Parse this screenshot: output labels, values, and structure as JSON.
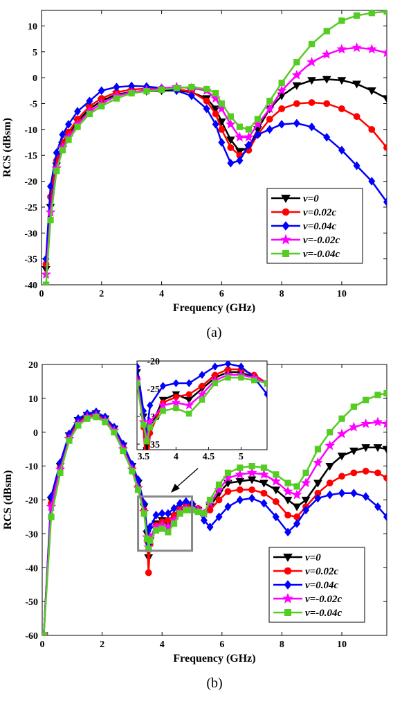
{
  "chart_data": [
    {
      "type": "line",
      "caption": "(a)",
      "xlabel": "Frequency (GHz)",
      "ylabel": "RCS (dBsm)",
      "xlim": [
        0,
        11.5
      ],
      "ylim": [
        -40,
        13
      ],
      "xticks": [
        "0",
        "2",
        "4",
        "6",
        "8",
        "10"
      ],
      "yticks": [
        "10",
        "5",
        "0",
        "-5",
        "-10",
        "-15",
        "-20",
        "-25",
        "-30",
        "-35",
        "-40"
      ],
      "legend_position": "lower-right",
      "series": [
        {
          "name": "v=0",
          "color": "#000000",
          "marker": "triangle-down",
          "x": [
            0.15,
            0.3,
            0.5,
            0.7,
            0.9,
            1.2,
            1.6,
            2,
            2.5,
            3,
            3.5,
            4,
            4.5,
            5,
            5.5,
            5.8,
            6,
            6.3,
            6.6,
            6.9,
            7.2,
            7.6,
            8,
            8.5,
            9,
            9.5,
            10,
            10.5,
            11,
            11.5
          ],
          "y": [
            -37,
            -25,
            -17,
            -13,
            -11,
            -8.5,
            -6,
            -4.5,
            -3.2,
            -2.8,
            -2.6,
            -2.5,
            -2.5,
            -2.8,
            -4,
            -6,
            -8.5,
            -12,
            -14.2,
            -13.5,
            -10,
            -6,
            -3.5,
            -1.5,
            -0.5,
            -0.3,
            -0.5,
            -1.2,
            -2.5,
            -4
          ]
        },
        {
          "name": "v=0.02c",
          "color": "#ff0000",
          "marker": "circle",
          "x": [
            0.15,
            0.3,
            0.5,
            0.7,
            0.9,
            1.2,
            1.6,
            2,
            2.5,
            3,
            3.5,
            4,
            4.5,
            5,
            5.5,
            5.8,
            6,
            6.3,
            6.6,
            6.9,
            7.2,
            7.6,
            8,
            8.5,
            9,
            9.5,
            10,
            10.5,
            11,
            11.5
          ],
          "y": [
            -36,
            -23,
            -16,
            -12.5,
            -10.5,
            -8,
            -5.5,
            -4,
            -2.8,
            -2.3,
            -2.1,
            -2.1,
            -2.2,
            -2.7,
            -4.5,
            -7,
            -10,
            -13.5,
            -15,
            -14,
            -11,
            -8,
            -6,
            -5,
            -4.8,
            -5,
            -6,
            -7.5,
            -10,
            -13.5
          ]
        },
        {
          "name": "v=0.04c",
          "color": "#0000ff",
          "marker": "diamond",
          "x": [
            0.15,
            0.3,
            0.5,
            0.7,
            0.9,
            1.2,
            1.6,
            2,
            2.5,
            3,
            3.5,
            4,
            4.5,
            5,
            5.5,
            5.8,
            6,
            6.3,
            6.6,
            6.9,
            7.2,
            7.6,
            8,
            8.5,
            9,
            9.5,
            10,
            10.5,
            11,
            11.5
          ],
          "y": [
            -35,
            -21,
            -14.5,
            -11,
            -9,
            -6.5,
            -4.5,
            -2.5,
            -1.8,
            -1.6,
            -1.7,
            -2,
            -2.5,
            -3.5,
            -6,
            -9,
            -12.5,
            -16.5,
            -16,
            -13,
            -11,
            -10,
            -9,
            -8.8,
            -9.5,
            -11.5,
            -14,
            -17,
            -20,
            -24
          ]
        },
        {
          "name": "v=-0.02c",
          "color": "#ff00ff",
          "marker": "star",
          "x": [
            0.15,
            0.3,
            0.5,
            0.7,
            0.9,
            1.2,
            1.6,
            2,
            2.5,
            3,
            3.5,
            4,
            4.5,
            5,
            5.5,
            5.8,
            6,
            6.3,
            6.6,
            6.9,
            7.2,
            7.6,
            8,
            8.5,
            9,
            9.5,
            10,
            10.5,
            11,
            11.5
          ],
          "y": [
            -38,
            -26,
            -17.5,
            -13.5,
            -11.5,
            -9,
            -6.5,
            -5,
            -3.5,
            -2.8,
            -2.4,
            -2.1,
            -1.8,
            -2,
            -2.5,
            -4,
            -6,
            -9,
            -11.5,
            -11.5,
            -9,
            -6,
            -2.5,
            0.5,
            3,
            4.5,
            5.5,
            5.8,
            5.5,
            4.8
          ]
        },
        {
          "name": "v=-0.04c",
          "color": "#55cc22",
          "marker": "square",
          "x": [
            0.15,
            0.3,
            0.5,
            0.7,
            0.9,
            1.2,
            1.6,
            2,
            2.5,
            3,
            3.5,
            4,
            4.5,
            5,
            5.5,
            5.8,
            6,
            6.3,
            6.6,
            6.9,
            7.2,
            7.6,
            8,
            8.5,
            9,
            9.5,
            10,
            10.5,
            11,
            11.5
          ],
          "y": [
            -40,
            -27.5,
            -18,
            -14,
            -12,
            -9.5,
            -7,
            -5.5,
            -4,
            -3,
            -2.6,
            -2.3,
            -2,
            -1.8,
            -2.2,
            -3,
            -5,
            -7.5,
            -9.5,
            -10,
            -8,
            -4.5,
            -1,
            3,
            6.5,
            9,
            11,
            12,
            12.5,
            12.8
          ]
        }
      ]
    },
    {
      "type": "line",
      "caption": "(b)",
      "xlabel": "Frequency (GHz)",
      "ylabel": "RCS (dBsm)",
      "xlim": [
        0,
        11.5
      ],
      "ylim": [
        -60,
        20
      ],
      "xticks": [
        "0",
        "2",
        "4",
        "6",
        "8",
        "10"
      ],
      "yticks": [
        "20",
        "10",
        "0",
        "-10",
        "-20",
        "-30",
        "-40",
        "-50",
        "-60"
      ],
      "legend_position": "lower-right",
      "inset": {
        "xlim": [
          3.4,
          5.4
        ],
        "ylim": [
          -36,
          -20
        ],
        "xticks": [
          "3.5",
          "4",
          "4.5",
          "5"
        ],
        "yticks": [
          "-20",
          "-25",
          "-30",
          "-35"
        ],
        "zoom_box_xlim": [
          3.2,
          5.0
        ],
        "zoom_box_ylim": [
          -35,
          -19
        ]
      },
      "series": [
        {
          "name": "v=0",
          "color": "#000000",
          "marker": "triangle-down",
          "x": [
            0.05,
            0.3,
            0.6,
            0.9,
            1.2,
            1.5,
            1.8,
            2.1,
            2.4,
            2.7,
            3.0,
            3.2,
            3.4,
            3.5,
            3.55,
            3.6,
            3.8,
            4.0,
            4.2,
            4.4,
            4.6,
            4.8,
            5.0,
            5.2,
            5.4,
            5.6,
            5.9,
            6.2,
            6.6,
            7.0,
            7.4,
            7.8,
            8.2,
            8.5,
            8.8,
            9.2,
            9.6,
            10.0,
            10.4,
            10.8,
            11.2,
            11.5
          ],
          "y": [
            -60,
            -20,
            -10,
            -1,
            3.5,
            5,
            5.5,
            4,
            1,
            -4,
            -10,
            -15,
            -22,
            -30,
            -37,
            -32,
            -27,
            -26,
            -27,
            -25,
            -23,
            -22,
            -22,
            -23,
            -24,
            -22,
            -18,
            -15,
            -14.5,
            -14,
            -15,
            -17,
            -20,
            -22,
            -20,
            -15,
            -10,
            -7,
            -5.5,
            -4.5,
            -4.5,
            -5
          ]
        },
        {
          "name": "v=0.02c",
          "color": "#ff0000",
          "marker": "circle",
          "x": [
            0.05,
            0.3,
            0.6,
            0.9,
            1.2,
            1.5,
            1.8,
            2.1,
            2.4,
            2.7,
            3.0,
            3.2,
            3.4,
            3.5,
            3.55,
            3.6,
            3.8,
            4.0,
            4.2,
            4.4,
            4.6,
            4.8,
            5.0,
            5.2,
            5.4,
            5.6,
            5.9,
            6.2,
            6.6,
            7.0,
            7.4,
            7.8,
            8.2,
            8.5,
            8.8,
            9.2,
            9.6,
            10.0,
            10.4,
            10.8,
            11.2,
            11.5
          ],
          "y": [
            -60,
            -21,
            -10.5,
            -1.5,
            3,
            4.8,
            5.2,
            3.8,
            0.8,
            -4.5,
            -10.5,
            -16,
            -23,
            -32,
            -41.5,
            -33,
            -27.5,
            -26.5,
            -26,
            -24.5,
            -22.5,
            -21.5,
            -21.5,
            -22.5,
            -24,
            -23,
            -20,
            -17.5,
            -17,
            -17,
            -18,
            -20.5,
            -24.5,
            -25,
            -22,
            -18,
            -15,
            -13,
            -12,
            -11.5,
            -12,
            -13.5
          ]
        },
        {
          "name": "v=0.04c",
          "color": "#0000ff",
          "marker": "diamond",
          "x": [
            0.05,
            0.3,
            0.6,
            0.9,
            1.2,
            1.5,
            1.8,
            2.1,
            2.4,
            2.7,
            3.0,
            3.2,
            3.4,
            3.5,
            3.55,
            3.6,
            3.8,
            4.0,
            4.2,
            4.4,
            4.6,
            4.8,
            5.0,
            5.2,
            5.4,
            5.6,
            5.9,
            6.2,
            6.6,
            7.0,
            7.4,
            7.8,
            8.2,
            8.5,
            8.8,
            9.2,
            9.6,
            10.0,
            10.4,
            10.8,
            11.2,
            11.5
          ],
          "y": [
            -60,
            -19,
            -9,
            -0.5,
            4,
            5.5,
            6,
            4.5,
            1.5,
            -3.5,
            -9.5,
            -14,
            -21,
            -29,
            -33,
            -28,
            -24.5,
            -24,
            -24,
            -22.5,
            -21,
            -20.5,
            -21,
            -23,
            -26,
            -28,
            -25,
            -22,
            -20,
            -19.5,
            -21,
            -25,
            -29.5,
            -27,
            -23,
            -19.5,
            -18.5,
            -18,
            -18,
            -19,
            -22,
            -25
          ]
        },
        {
          "name": "v=-0.02c",
          "color": "#ff00ff",
          "marker": "star",
          "x": [
            0.05,
            0.3,
            0.6,
            0.9,
            1.2,
            1.5,
            1.8,
            2.1,
            2.4,
            2.7,
            3.0,
            3.2,
            3.4,
            3.5,
            3.55,
            3.6,
            3.8,
            4.0,
            4.2,
            4.4,
            4.6,
            4.8,
            5.0,
            5.2,
            5.4,
            5.6,
            5.9,
            6.2,
            6.6,
            7.0,
            7.4,
            7.8,
            8.2,
            8.5,
            8.8,
            9.2,
            9.6,
            10.0,
            10.4,
            10.8,
            11.2,
            11.5
          ],
          "y": [
            -60,
            -22,
            -11,
            -2,
            2.5,
            4.5,
            5,
            3.5,
            0.5,
            -5,
            -11,
            -16.5,
            -23.5,
            -31,
            -34,
            -31,
            -28,
            -27.5,
            -28,
            -26,
            -23.5,
            -22.5,
            -22.5,
            -23,
            -24,
            -21,
            -17,
            -13.5,
            -12.5,
            -12,
            -12.5,
            -14.5,
            -17.5,
            -18.5,
            -15,
            -9,
            -4,
            -0.5,
            1.5,
            2.5,
            3,
            2.5
          ]
        },
        {
          "name": "v=-0.04c",
          "color": "#55cc22",
          "marker": "square",
          "x": [
            0.05,
            0.3,
            0.6,
            0.9,
            1.2,
            1.5,
            1.8,
            2.1,
            2.4,
            2.7,
            3.0,
            3.2,
            3.4,
            3.5,
            3.55,
            3.6,
            3.8,
            4.0,
            4.2,
            4.4,
            4.6,
            4.8,
            5.0,
            5.2,
            5.4,
            5.6,
            5.9,
            6.2,
            6.6,
            7.0,
            7.4,
            7.8,
            8.2,
            8.5,
            8.8,
            9.2,
            9.6,
            10.0,
            10.4,
            10.8,
            11.2,
            11.5
          ],
          "y": [
            -60,
            -25,
            -12,
            -2.5,
            2,
            4,
            4.5,
            3,
            0,
            -5.5,
            -11.5,
            -17,
            -24,
            -31.5,
            -34.5,
            -32,
            -29,
            -28.5,
            -29.5,
            -27,
            -24,
            -23,
            -23,
            -23.5,
            -24,
            -20,
            -15.5,
            -12,
            -10.5,
            -10,
            -10.5,
            -12.5,
            -15,
            -16,
            -12,
            -5,
            0,
            4,
            7.5,
            9.5,
            11,
            11.5
          ]
        }
      ]
    }
  ]
}
